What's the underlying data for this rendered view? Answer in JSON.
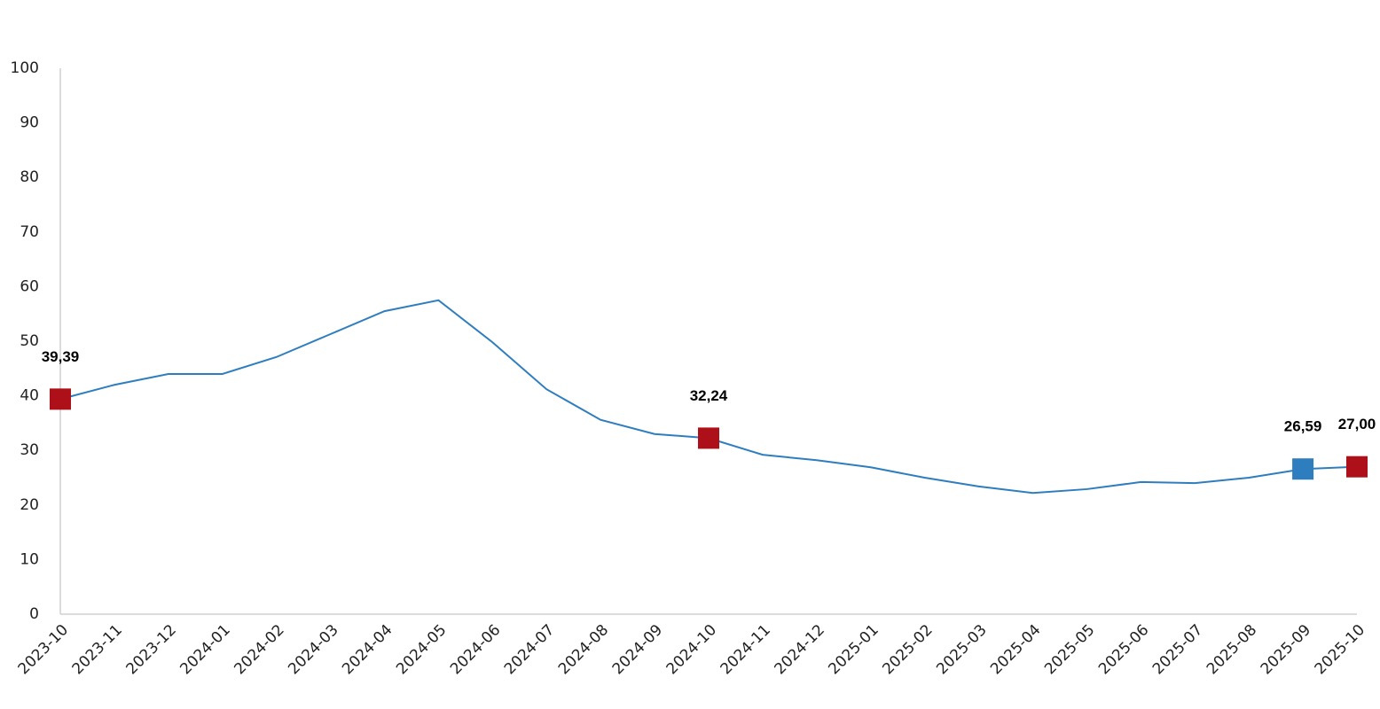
{
  "chart_data": {
    "type": "line",
    "categories": [
      "2023-10",
      "2023-11",
      "2023-12",
      "2024-01",
      "2024-02",
      "2024-03",
      "2024-04",
      "2024-05",
      "2024-06",
      "2024-07",
      "2024-08",
      "2024-09",
      "2024-10",
      "2024-11",
      "2024-12",
      "2025-01",
      "2025-02",
      "2025-03",
      "2025-04",
      "2025-05",
      "2025-06",
      "2025-07",
      "2025-08",
      "2025-09",
      "2025-10"
    ],
    "series": [
      {
        "color": "#2e7ebf",
        "values": [
          39.39,
          42.0,
          44.0,
          44.0,
          47.1,
          51.3,
          55.5,
          57.5,
          49.8,
          41.2,
          35.6,
          33.0,
          32.24,
          29.2,
          28.2,
          26.9,
          25.0,
          23.4,
          22.2,
          22.9,
          24.2,
          24.0,
          25.0,
          26.59,
          27.0
        ],
        "value_labels": [
          "39,39",
          null,
          null,
          null,
          null,
          null,
          null,
          null,
          null,
          null,
          null,
          null,
          "32,24",
          null,
          null,
          null,
          null,
          null,
          null,
          null,
          null,
          null,
          null,
          "26,59",
          "27,00"
        ],
        "marker_colors": [
          "#ad1018",
          null,
          null,
          null,
          null,
          null,
          null,
          null,
          null,
          null,
          null,
          null,
          "#ad1018",
          null,
          null,
          null,
          null,
          null,
          null,
          null,
          null,
          null,
          null,
          "#2e7ebf",
          "#ad1018"
        ]
      }
    ],
    "ylim": [
      0,
      100
    ],
    "yticks": [
      0,
      10,
      20,
      30,
      40,
      50,
      60,
      70,
      80,
      90,
      100
    ],
    "grid": false
  }
}
